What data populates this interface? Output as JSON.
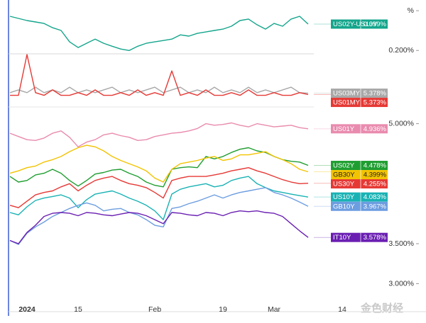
{
  "chart_data": [
    {
      "type": "line",
      "ylim": [
        0.18,
        0.57
      ],
      "yticks": [
        {
          "value": 0.5,
          "label": "%"
        },
        {
          "value": 0.2,
          "label": "0.200%"
        }
      ],
      "series": [
        {
          "name": "US02Y-US10Y",
          "color": "#14a58c",
          "tag": {
            "value": 0.399,
            "label": "0.399%"
          },
          "values": [
            0.458,
            0.442,
            0.426,
            0.415,
            0.404,
            0.372,
            0.351,
            0.265,
            0.222,
            0.254,
            0.286,
            0.254,
            0.232,
            0.211,
            0.2,
            0.232,
            0.254,
            0.265,
            0.275,
            0.286,
            0.318,
            0.308,
            0.329,
            0.34,
            0.351,
            0.361,
            0.383,
            0.426,
            0.437,
            0.394,
            0.361,
            0.404,
            0.383,
            0.437,
            0.458,
            0.399,
            null,
            null,
            null,
            null
          ]
        }
      ]
    },
    {
      "type": "line",
      "ylim": [
        5.33,
        5.52
      ],
      "series": [
        {
          "name": "US03MY",
          "color": "#a8a8a8",
          "tag": {
            "value": 5.378,
            "label": "5.378%"
          },
          "values": [
            5.38,
            5.39,
            5.38,
            5.4,
            5.38,
            5.39,
            5.38,
            5.4,
            5.38,
            5.39,
            5.38,
            5.39,
            5.4,
            5.38,
            5.39,
            5.38,
            5.39,
            5.4,
            5.38,
            5.39,
            5.4,
            5.38,
            5.39,
            5.38,
            5.4,
            5.38,
            5.39,
            5.38,
            5.4,
            5.38,
            5.39,
            5.38,
            5.39,
            5.4,
            5.38,
            5.378,
            null,
            null,
            null,
            null
          ]
        },
        {
          "name": "US01MY",
          "color": "#e53935",
          "tag": {
            "value": 5.373,
            "label": "5.373%"
          },
          "values": [
            5.37,
            5.37,
            5.52,
            5.38,
            5.37,
            5.39,
            5.37,
            5.37,
            5.38,
            5.37,
            5.39,
            5.37,
            5.37,
            5.38,
            5.37,
            5.39,
            5.37,
            5.38,
            5.37,
            5.46,
            5.37,
            5.38,
            5.37,
            5.39,
            5.37,
            5.37,
            5.38,
            5.37,
            5.39,
            5.37,
            5.37,
            5.38,
            5.37,
            5.37,
            5.38,
            5.373,
            null,
            null,
            null,
            null
          ]
        }
      ]
    },
    {
      "type": "line",
      "ylim": [
        2.65,
        5.2
      ],
      "yticks": [
        {
          "value": 5,
          "label": "5.000%"
        },
        {
          "value": 3.5,
          "label": "3.500%"
        },
        {
          "value": 3,
          "label": "3.000%"
        }
      ],
      "categories": [
        null,
        null,
        "2024",
        null,
        null,
        null,
        null,
        null,
        "15",
        null,
        null,
        null,
        null,
        null,
        null,
        null,
        null,
        "Feb",
        null,
        null,
        null,
        null,
        null,
        null,
        null,
        "19",
        null,
        null,
        null,
        null,
        null,
        "Mar",
        null,
        null,
        null,
        null,
        null,
        null,
        null,
        "14"
      ],
      "series": [
        {
          "name": "US01Y",
          "color": "#e98bae",
          "tag": {
            "value": 4.936,
            "label": "4.936%"
          },
          "values": [
            4.88,
            4.84,
            4.8,
            4.79,
            4.82,
            4.88,
            4.91,
            4.83,
            4.71,
            4.77,
            4.8,
            4.86,
            4.88,
            4.85,
            4.83,
            4.79,
            4.8,
            4.84,
            4.86,
            4.88,
            4.89,
            4.91,
            4.94,
            5.0,
            4.98,
            4.99,
            5.01,
            4.98,
            4.96,
            5.0,
            4.98,
            4.96,
            4.97,
            4.98,
            4.95,
            4.936,
            null,
            null,
            null,
            null
          ]
        },
        {
          "name": "US02Y",
          "color": "#1f9e30",
          "tag": {
            "value": 4.478,
            "label": "4.478%"
          },
          "values": [
            4.34,
            4.27,
            4.29,
            4.36,
            4.38,
            4.43,
            4.38,
            4.29,
            4.22,
            4.29,
            4.37,
            4.39,
            4.42,
            4.43,
            4.38,
            4.34,
            4.27,
            4.23,
            4.21,
            4.43,
            4.45,
            4.46,
            4.45,
            4.59,
            4.56,
            4.59,
            4.64,
            4.68,
            4.7,
            4.66,
            4.64,
            4.59,
            4.55,
            4.53,
            4.52,
            4.478,
            null,
            null,
            null,
            null
          ]
        },
        {
          "name": "GB30Y",
          "color": "#f2c300",
          "tag": {
            "value": 4.399,
            "label": "4.399%"
          },
          "values": [
            4.38,
            4.41,
            4.45,
            4.47,
            4.52,
            4.55,
            4.59,
            4.65,
            4.7,
            4.73,
            4.71,
            4.66,
            4.59,
            4.54,
            4.5,
            4.46,
            4.41,
            4.32,
            4.27,
            4.43,
            4.5,
            4.52,
            4.54,
            4.57,
            4.59,
            4.54,
            4.56,
            4.61,
            4.61,
            4.63,
            4.65,
            4.59,
            4.55,
            4.5,
            4.43,
            4.399,
            null,
            null,
            null,
            null
          ]
        },
        {
          "name": "US30Y",
          "color": "#e53935",
          "tag": {
            "value": 4.255,
            "label": "4.255%"
          },
          "values": [
            3.98,
            3.95,
            4.03,
            4.11,
            4.14,
            4.16,
            4.21,
            4.25,
            4.16,
            4.23,
            4.29,
            4.32,
            4.34,
            4.29,
            4.25,
            4.23,
            4.2,
            4.14,
            4.07,
            4.29,
            4.32,
            4.34,
            4.34,
            4.34,
            4.36,
            4.38,
            4.41,
            4.43,
            4.45,
            4.41,
            4.38,
            4.34,
            4.3,
            4.27,
            4.25,
            4.255,
            null,
            null,
            null,
            null
          ]
        },
        {
          "name": "US10Y",
          "color": "#19b2b4",
          "tag": {
            "value": 4.083,
            "label": "4.083%"
          },
          "values": [
            3.89,
            3.86,
            3.96,
            4.04,
            4.07,
            4.09,
            4.11,
            4.07,
            3.95,
            4.05,
            4.12,
            4.14,
            4.16,
            4.12,
            4.07,
            4.03,
            3.98,
            3.91,
            3.8,
            4.12,
            4.18,
            4.21,
            4.23,
            4.25,
            4.21,
            4.23,
            4.29,
            4.32,
            4.34,
            4.25,
            4.2,
            4.16,
            4.14,
            4.12,
            4.1,
            4.083,
            null,
            null,
            null,
            null
          ]
        },
        {
          "name": "GB10Y",
          "color": "#6c9de0",
          "tag": {
            "value": 3.967,
            "label": "3.967%"
          },
          "values": [
            3.54,
            3.49,
            3.63,
            3.71,
            3.77,
            3.84,
            3.89,
            3.94,
            3.98,
            4.01,
            3.98,
            3.91,
            3.93,
            3.94,
            3.89,
            3.86,
            3.8,
            3.73,
            3.71,
            3.94,
            3.96,
            4.0,
            4.03,
            4.07,
            4.11,
            4.07,
            4.11,
            4.14,
            4.16,
            4.18,
            4.2,
            4.14,
            4.11,
            4.07,
            4.02,
            3.967,
            null,
            null,
            null,
            null
          ]
        },
        {
          "name": "IT10Y",
          "color": "#6a1fb2",
          "tag": {
            "value": 3.578,
            "label": "3.578%"
          },
          "values": [
            3.54,
            3.5,
            3.64,
            3.73,
            3.84,
            3.88,
            3.89,
            3.88,
            3.85,
            3.89,
            3.88,
            3.86,
            3.85,
            3.87,
            3.89,
            3.88,
            3.85,
            3.8,
            3.75,
            3.89,
            3.88,
            3.86,
            3.85,
            3.89,
            3.88,
            3.85,
            3.89,
            3.91,
            3.9,
            3.91,
            3.89,
            3.88,
            3.84,
            3.75,
            3.66,
            3.578,
            null,
            null,
            null,
            null
          ]
        }
      ]
    }
  ],
  "watermark": "金色财经"
}
